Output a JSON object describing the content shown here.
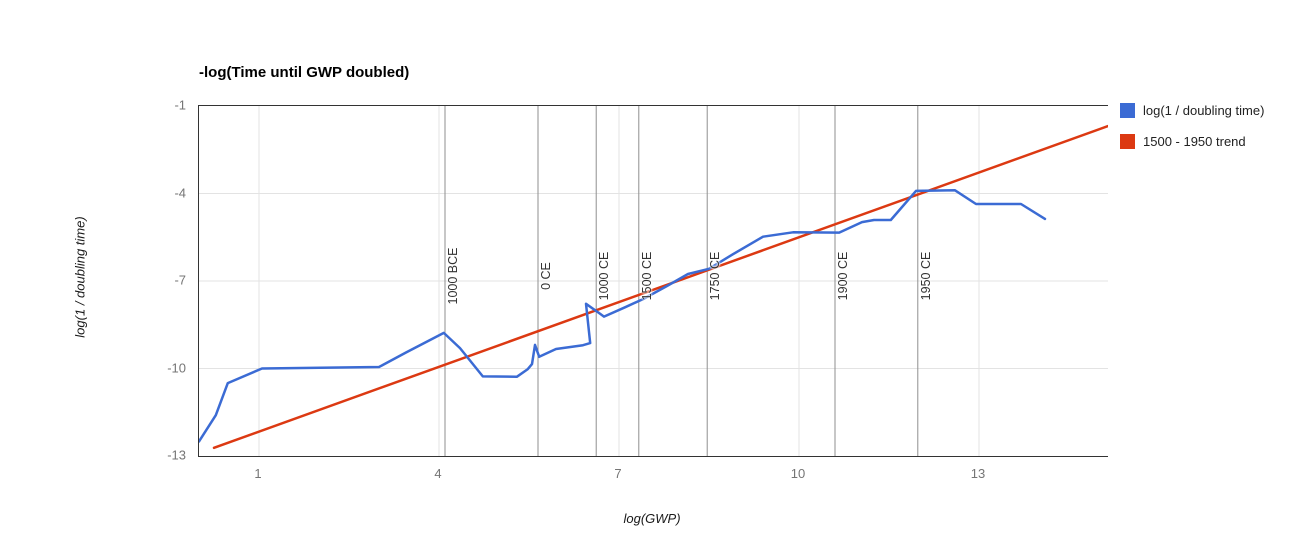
{
  "chart_data": {
    "type": "line",
    "title": "-log(Time until GWP doubled)",
    "xlabel": "log(GWP)",
    "ylabel": "log(1 / doubling time)",
    "xlim": [
      0,
      15.15
    ],
    "ylim": [
      -13,
      -1
    ],
    "x_ticks": [
      1,
      4,
      7,
      10,
      13
    ],
    "y_ticks": [
      -1,
      -4,
      -7,
      -10,
      -13
    ],
    "grid": true,
    "legend_position": "right",
    "colors": {
      "gridline": "#e3e3e3",
      "annotation_line": "#8f8f8f",
      "axis": "#333333",
      "tick_text": "#757575",
      "series_blue": "#3b6bd4",
      "trend_red": "#dc3912"
    },
    "annotations": [
      {
        "label": "1000 BCE",
        "x": 4.1
      },
      {
        "label": "0 CE",
        "x": 5.65
      },
      {
        "label": "1000 CE",
        "x": 6.62
      },
      {
        "label": "1500 CE",
        "x": 7.33
      },
      {
        "label": "1750 CE",
        "x": 8.47
      },
      {
        "label": "1900 CE",
        "x": 10.6
      },
      {
        "label": "1950 CE",
        "x": 11.98
      }
    ],
    "series": [
      {
        "name": "log(1 / doubling time)",
        "color": "#3b6bd4",
        "points": [
          [
            0.0,
            -12.5
          ],
          [
            0.28,
            -11.6
          ],
          [
            0.48,
            -10.5
          ],
          [
            1.05,
            -10.0
          ],
          [
            3.0,
            -9.95
          ],
          [
            3.45,
            -9.45
          ],
          [
            4.08,
            -8.78
          ],
          [
            4.35,
            -9.3
          ],
          [
            4.73,
            -10.27
          ],
          [
            5.3,
            -10.28
          ],
          [
            5.48,
            -10.02
          ],
          [
            5.55,
            -9.85
          ],
          [
            5.6,
            -9.19
          ],
          [
            5.67,
            -9.6
          ],
          [
            5.95,
            -9.33
          ],
          [
            6.4,
            -9.2
          ],
          [
            6.52,
            -9.13
          ],
          [
            6.45,
            -7.78
          ],
          [
            6.67,
            -8.1
          ],
          [
            6.75,
            -8.22
          ],
          [
            7.1,
            -7.9
          ],
          [
            7.4,
            -7.62
          ],
          [
            7.8,
            -7.17
          ],
          [
            8.15,
            -6.76
          ],
          [
            8.5,
            -6.58
          ],
          [
            8.9,
            -6.08
          ],
          [
            9.4,
            -5.48
          ],
          [
            9.9,
            -5.33
          ],
          [
            10.67,
            -5.34
          ],
          [
            11.05,
            -4.98
          ],
          [
            11.25,
            -4.91
          ],
          [
            11.53,
            -4.91
          ],
          [
            11.95,
            -3.91
          ],
          [
            12.6,
            -3.89
          ],
          [
            12.95,
            -4.36
          ],
          [
            13.7,
            -4.36
          ],
          [
            14.1,
            -4.87
          ]
        ]
      },
      {
        "name": "1500 - 1950 trend",
        "color": "#dc3912",
        "points": [
          [
            0.25,
            -12.72
          ],
          [
            15.15,
            -1.69
          ]
        ]
      }
    ]
  }
}
